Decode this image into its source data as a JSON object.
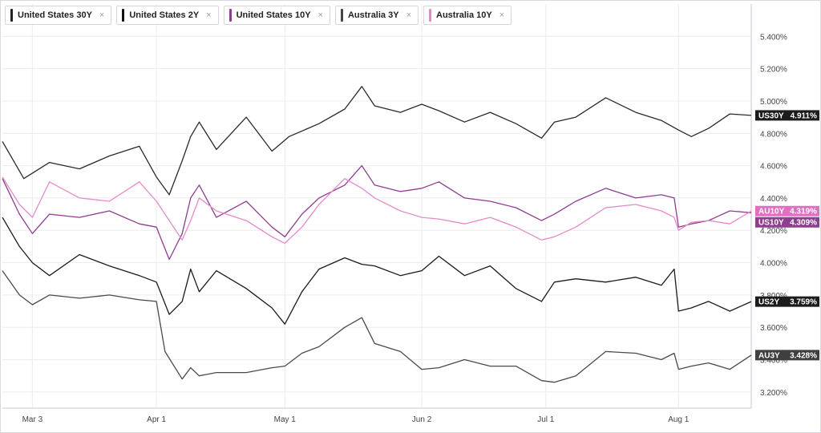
{
  "legend": [
    {
      "label": "United States 30Y",
      "color": "#222222"
    },
    {
      "label": "United States 2Y",
      "color": "#111111"
    },
    {
      "label": "United States 10Y",
      "color": "#8e3d8f"
    },
    {
      "label": "Australia 3Y",
      "color": "#444444"
    },
    {
      "label": "Australia 10Y",
      "color": "#e58ac9"
    }
  ],
  "close_glyph": "×",
  "chart_data": {
    "type": "line",
    "x_start": "2025-02-24",
    "x_end": "2025-08-18",
    "ylim": [
      3.1,
      5.6
    ],
    "y_ticks": [
      3.2,
      3.4,
      3.6,
      3.8,
      4.0,
      4.2,
      4.4,
      4.6,
      4.8,
      5.0,
      5.2,
      5.4
    ],
    "y_tick_labels": [
      "3.200%",
      "3.400%",
      "3.600%",
      "3.800%",
      "4.000%",
      "4.200%",
      "4.400%",
      "4.600%",
      "4.800%",
      "5.000%",
      "5.200%",
      "5.400%"
    ],
    "x_ticks": [
      {
        "date": "2025-03-03",
        "label": "Mar 3"
      },
      {
        "date": "2025-04-01",
        "label": "Apr 1"
      },
      {
        "date": "2025-05-01",
        "label": "May 1"
      },
      {
        "date": "2025-06-02",
        "label": "Jun 2"
      },
      {
        "date": "2025-07-01",
        "label": "Jul 1"
      },
      {
        "date": "2025-08-01",
        "label": "Aug 1"
      }
    ],
    "grid": true,
    "series": [
      {
        "name": "United States 30Y",
        "tag": "US30Y",
        "last_label": "4.911%",
        "color": "#2a2a2a",
        "tag_bg": "#1c1c1c",
        "width": 1.3,
        "x": [
          "2025-02-24",
          "2025-03-01",
          "2025-03-07",
          "2025-03-14",
          "2025-03-21",
          "2025-03-28",
          "2025-04-01",
          "2025-04-04",
          "2025-04-07",
          "2025-04-09",
          "2025-04-11",
          "2025-04-15",
          "2025-04-22",
          "2025-04-28",
          "2025-05-02",
          "2025-05-09",
          "2025-05-15",
          "2025-05-19",
          "2025-05-22",
          "2025-05-28",
          "2025-06-02",
          "2025-06-06",
          "2025-06-12",
          "2025-06-18",
          "2025-06-24",
          "2025-06-30",
          "2025-07-03",
          "2025-07-08",
          "2025-07-15",
          "2025-07-22",
          "2025-07-28",
          "2025-08-01",
          "2025-08-04",
          "2025-08-08",
          "2025-08-13",
          "2025-08-18"
        ],
        "y": [
          4.75,
          4.52,
          4.62,
          4.58,
          4.66,
          4.72,
          4.53,
          4.42,
          4.63,
          4.78,
          4.87,
          4.7,
          4.9,
          4.69,
          4.78,
          4.86,
          4.95,
          5.09,
          4.97,
          4.93,
          4.98,
          4.94,
          4.87,
          4.93,
          4.86,
          4.77,
          4.87,
          4.9,
          5.02,
          4.93,
          4.88,
          4.82,
          4.78,
          4.83,
          4.92,
          4.911
        ]
      },
      {
        "name": "United States 2Y",
        "tag": "US2Y",
        "last_label": "3.759%",
        "color": "#1a1a1a",
        "tag_bg": "#1c1c1c",
        "width": 1.3,
        "x": [
          "2025-02-24",
          "2025-02-28",
          "2025-03-03",
          "2025-03-07",
          "2025-03-14",
          "2025-03-21",
          "2025-03-28",
          "2025-04-01",
          "2025-04-04",
          "2025-04-07",
          "2025-04-09",
          "2025-04-11",
          "2025-04-15",
          "2025-04-22",
          "2025-04-28",
          "2025-05-01",
          "2025-05-05",
          "2025-05-09",
          "2025-05-15",
          "2025-05-19",
          "2025-05-22",
          "2025-05-28",
          "2025-06-02",
          "2025-06-06",
          "2025-06-12",
          "2025-06-18",
          "2025-06-24",
          "2025-06-30",
          "2025-07-03",
          "2025-07-08",
          "2025-07-15",
          "2025-07-22",
          "2025-07-28",
          "2025-07-31",
          "2025-08-01",
          "2025-08-04",
          "2025-08-08",
          "2025-08-13",
          "2025-08-18"
        ],
        "y": [
          4.28,
          4.1,
          4.0,
          3.92,
          4.05,
          3.98,
          3.92,
          3.88,
          3.68,
          3.76,
          3.96,
          3.82,
          3.95,
          3.84,
          3.72,
          3.62,
          3.82,
          3.96,
          4.03,
          3.99,
          3.98,
          3.92,
          3.95,
          4.04,
          3.92,
          3.98,
          3.84,
          3.76,
          3.88,
          3.9,
          3.88,
          3.91,
          3.86,
          3.96,
          3.7,
          3.72,
          3.76,
          3.7,
          3.759
        ]
      },
      {
        "name": "United States 10Y",
        "tag": "US10Y",
        "last_label": "4.309%",
        "color": "#8e3d8f",
        "tag_bg": "#8e3d8f",
        "width": 1.3,
        "x": [
          "2025-02-24",
          "2025-02-28",
          "2025-03-03",
          "2025-03-07",
          "2025-03-14",
          "2025-03-21",
          "2025-03-28",
          "2025-04-01",
          "2025-04-04",
          "2025-04-07",
          "2025-04-09",
          "2025-04-11",
          "2025-04-15",
          "2025-04-22",
          "2025-04-28",
          "2025-05-01",
          "2025-05-05",
          "2025-05-09",
          "2025-05-15",
          "2025-05-19",
          "2025-05-22",
          "2025-05-28",
          "2025-06-02",
          "2025-06-06",
          "2025-06-12",
          "2025-06-18",
          "2025-06-24",
          "2025-06-30",
          "2025-07-03",
          "2025-07-08",
          "2025-07-15",
          "2025-07-22",
          "2025-07-28",
          "2025-07-31",
          "2025-08-01",
          "2025-08-04",
          "2025-08-08",
          "2025-08-13",
          "2025-08-18"
        ],
        "y": [
          4.52,
          4.3,
          4.18,
          4.3,
          4.28,
          4.32,
          4.24,
          4.22,
          4.02,
          4.18,
          4.4,
          4.48,
          4.28,
          4.38,
          4.22,
          4.16,
          4.3,
          4.4,
          4.48,
          4.6,
          4.48,
          4.44,
          4.46,
          4.5,
          4.4,
          4.38,
          4.34,
          4.26,
          4.3,
          4.38,
          4.46,
          4.4,
          4.42,
          4.4,
          4.22,
          4.24,
          4.26,
          4.32,
          4.309
        ]
      },
      {
        "name": "Australia 3Y",
        "tag": "AU3Y",
        "last_label": "3.428%",
        "color": "#4a4a4a",
        "tag_bg": "#3f3f3f",
        "width": 1.3,
        "x": [
          "2025-02-24",
          "2025-02-28",
          "2025-03-03",
          "2025-03-07",
          "2025-03-14",
          "2025-03-21",
          "2025-03-28",
          "2025-04-01",
          "2025-04-03",
          "2025-04-07",
          "2025-04-09",
          "2025-04-11",
          "2025-04-15",
          "2025-04-22",
          "2025-04-28",
          "2025-05-01",
          "2025-05-05",
          "2025-05-09",
          "2025-05-15",
          "2025-05-19",
          "2025-05-22",
          "2025-05-28",
          "2025-06-02",
          "2025-06-06",
          "2025-06-12",
          "2025-06-18",
          "2025-06-24",
          "2025-06-30",
          "2025-07-03",
          "2025-07-08",
          "2025-07-15",
          "2025-07-22",
          "2025-07-28",
          "2025-07-31",
          "2025-08-01",
          "2025-08-04",
          "2025-08-08",
          "2025-08-13",
          "2025-08-18"
        ],
        "y": [
          3.95,
          3.8,
          3.74,
          3.8,
          3.78,
          3.8,
          3.77,
          3.76,
          3.45,
          3.28,
          3.35,
          3.3,
          3.32,
          3.32,
          3.35,
          3.36,
          3.44,
          3.48,
          3.6,
          3.66,
          3.5,
          3.45,
          3.34,
          3.35,
          3.4,
          3.36,
          3.36,
          3.27,
          3.26,
          3.3,
          3.45,
          3.44,
          3.4,
          3.44,
          3.34,
          3.36,
          3.38,
          3.34,
          3.428
        ]
      },
      {
        "name": "Australia 10Y",
        "tag": "AU10Y",
        "last_label": "4.319%",
        "color": "#e58ac9",
        "tag_bg": "#e070c0",
        "width": 1.3,
        "x": [
          "2025-02-24",
          "2025-02-28",
          "2025-03-03",
          "2025-03-07",
          "2025-03-14",
          "2025-03-21",
          "2025-03-28",
          "2025-04-01",
          "2025-04-03",
          "2025-04-07",
          "2025-04-09",
          "2025-04-11",
          "2025-04-15",
          "2025-04-22",
          "2025-04-28",
          "2025-05-01",
          "2025-05-05",
          "2025-05-09",
          "2025-05-15",
          "2025-05-19",
          "2025-05-22",
          "2025-05-28",
          "2025-06-02",
          "2025-06-06",
          "2025-06-12",
          "2025-06-18",
          "2025-06-24",
          "2025-06-30",
          "2025-07-03",
          "2025-07-08",
          "2025-07-15",
          "2025-07-22",
          "2025-07-28",
          "2025-07-31",
          "2025-08-01",
          "2025-08-04",
          "2025-08-08",
          "2025-08-13",
          "2025-08-18"
        ],
        "y": [
          4.53,
          4.36,
          4.28,
          4.5,
          4.4,
          4.38,
          4.5,
          4.38,
          4.3,
          4.14,
          4.26,
          4.4,
          4.32,
          4.26,
          4.16,
          4.12,
          4.22,
          4.36,
          4.52,
          4.46,
          4.4,
          4.32,
          4.28,
          4.27,
          4.24,
          4.28,
          4.22,
          4.14,
          4.16,
          4.22,
          4.34,
          4.36,
          4.32,
          4.28,
          4.2,
          4.25,
          4.26,
          4.24,
          4.319
        ]
      }
    ]
  }
}
